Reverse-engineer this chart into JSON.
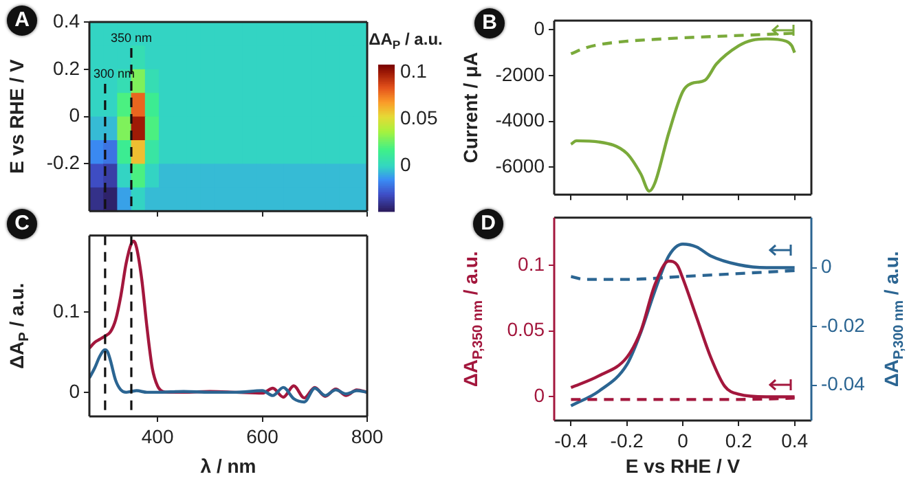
{
  "chart_data": [
    {
      "type": "heatmap",
      "annotations": [
        "A"
      ],
      "ylabel": "E vs RHE / V",
      "clabel": "ΔA$_{P}$ / a.u.",
      "tick_labels": "y",
      "x": [
        283.25,
        309.75,
        336.25,
        362.75,
        389.25,
        415.75,
        442.25,
        468.75,
        495.25,
        521.75,
        548.25,
        574.75,
        601.25,
        627.75,
        654.25,
        680.75,
        707.25,
        733.75,
        760.25,
        786.75
      ],
      "y": [
        0.35,
        0.25,
        0.15,
        0.05,
        -0.05,
        -0.15,
        -0.25,
        -0.35
      ],
      "xlim": [
        270,
        800
      ],
      "xticks": [
        400,
        600,
        800
      ],
      "ylim": [
        -0.4,
        0.4
      ],
      "yticks": [
        0.4,
        0.2,
        0,
        -0.2
      ],
      "clim": [
        -0.048,
        0.108
      ],
      "cticks": [
        0.1,
        0.05,
        0
      ],
      "cells": [
        [
          0,
          0,
          0,
          0,
          0,
          0,
          0,
          0,
          0,
          0,
          0,
          0,
          0,
          0,
          0,
          0,
          0,
          0,
          0,
          0
        ],
        [
          0,
          0,
          0,
          0.005,
          0,
          0,
          0,
          0,
          0,
          0,
          0,
          0,
          0,
          0,
          0,
          0,
          0,
          0,
          0,
          0
        ],
        [
          0,
          0,
          0.005,
          0.03,
          0.005,
          0,
          0,
          0,
          0,
          0,
          0,
          0,
          0,
          0,
          0,
          0,
          0,
          0,
          0,
          0
        ],
        [
          0,
          0,
          0.02,
          0.08,
          0.015,
          0,
          0,
          0,
          0,
          0,
          0,
          0,
          0,
          0,
          0,
          0,
          0,
          0,
          0,
          0
        ],
        [
          -0.005,
          -0.005,
          0.03,
          0.1,
          0.02,
          0,
          0,
          0,
          0,
          0,
          0,
          0,
          0,
          0,
          0,
          0,
          0,
          0,
          0,
          0
        ],
        [
          -0.015,
          -0.02,
          0.015,
          0.06,
          0.01,
          0,
          0,
          0,
          0,
          0,
          0,
          0,
          0,
          0,
          0,
          0,
          0,
          0,
          0,
          0
        ],
        [
          -0.03,
          -0.035,
          0,
          0.02,
          0,
          -0.005,
          -0.005,
          -0.005,
          -0.005,
          -0.005,
          -0.005,
          -0.005,
          -0.005,
          -0.005,
          -0.005,
          -0.005,
          -0.005,
          -0.005,
          -0.005,
          -0.005
        ],
        [
          -0.04,
          -0.045,
          -0.01,
          0,
          -0.005,
          -0.005,
          -0.005,
          -0.005,
          -0.005,
          -0.005,
          -0.005,
          -0.005,
          -0.005,
          -0.005,
          -0.005,
          -0.005,
          -0.005,
          -0.005,
          -0.005,
          -0.005
        ]
      ],
      "ref_lines": [
        {
          "axis": "x",
          "value": 300,
          "label": "300 nm",
          "line_style": "dashed"
        },
        {
          "axis": "x",
          "value": 350,
          "label": "350 nm",
          "line_style": "dashed"
        }
      ]
    },
    {
      "type": "line",
      "annotations": [
        "B"
      ],
      "ylabel": "Current / μA",
      "tick_labels": "y",
      "xlim": [
        -0.46,
        0.46
      ],
      "xticks": [
        -0.4,
        -0.2,
        0,
        0.2,
        0.4
      ],
      "ylim": [
        -7200,
        400
      ],
      "yticks": [
        0,
        -2000,
        -4000,
        -6000
      ],
      "series": [
        {
          "color": "#7aaa3a",
          "line_style": "solid",
          "x": [
            -0.4,
            -0.38,
            -0.3,
            -0.2,
            -0.15,
            -0.12,
            -0.1,
            -0.05,
            0,
            0.03,
            0.08,
            0.12,
            0.2,
            0.25,
            0.3,
            0.37,
            0.39,
            0.4
          ],
          "values": [
            -5000,
            -4850,
            -4900,
            -5400,
            -6300,
            -7050,
            -6700,
            -4500,
            -2700,
            -2350,
            -2200,
            -1500,
            -700,
            -450,
            -400,
            -500,
            -700,
            -1000
          ]
        },
        {
          "color": "#7aaa3a",
          "line_style": "dashed",
          "x": [
            -0.4,
            -0.35,
            -0.3,
            -0.2,
            -0.1,
            0,
            0.1,
            0.2,
            0.3,
            0.4
          ],
          "values": [
            -1050,
            -800,
            -650,
            -500,
            -420,
            -350,
            -300,
            -250,
            -200,
            -150
          ]
        }
      ]
    },
    {
      "type": "line",
      "annotations": [
        "C"
      ],
      "xlabel": "λ / nm",
      "ylabel": "ΔA$_{P}$ / a.u.",
      "xlim": [
        270,
        800
      ],
      "xticks": [
        400,
        600,
        800
      ],
      "ylim": [
        -0.03,
        0.195
      ],
      "yticks": [
        0,
        0.1
      ],
      "ref_lines": [
        {
          "axis": "x",
          "value": 300,
          "line_style": "dashed"
        },
        {
          "axis": "x",
          "value": 350,
          "line_style": "dashed"
        }
      ],
      "series": [
        {
          "color": "#2b6592",
          "x": [
            270,
            280,
            290,
            300,
            305,
            310,
            320,
            330,
            340,
            350,
            360,
            380,
            400,
            450,
            500,
            550,
            600,
            620,
            640,
            660,
            680,
            700,
            720,
            740,
            760,
            780,
            800
          ],
          "values": [
            0.018,
            0.03,
            0.045,
            0.053,
            0.05,
            0.04,
            0.015,
            0.003,
            0,
            0.001,
            0.002,
            0,
            0,
            0.001,
            0,
            0,
            0.002,
            -0.004,
            0.006,
            -0.008,
            -0.012,
            0.005,
            -0.004,
            0.003,
            -0.002,
            0.002,
            0
          ]
        },
        {
          "color": "#a3173d",
          "x": [
            270,
            280,
            290,
            300,
            310,
            320,
            330,
            340,
            350,
            355,
            360,
            370,
            380,
            390,
            400,
            410,
            420,
            450,
            500,
            550,
            600,
            620,
            640,
            660,
            680,
            700,
            720,
            740,
            760,
            780,
            800
          ],
          "values": [
            0.055,
            0.062,
            0.066,
            0.07,
            0.075,
            0.09,
            0.12,
            0.16,
            0.185,
            0.188,
            0.18,
            0.14,
            0.08,
            0.03,
            0.008,
            0.001,
            0,
            0,
            0.001,
            0,
            -0.001,
            0.005,
            -0.006,
            0.008,
            -0.007,
            0.006,
            -0.005,
            0.004,
            -0.004,
            0.003,
            0
          ]
        }
      ]
    },
    {
      "type": "line",
      "annotations": [
        "D"
      ],
      "xlabel": "E vs RHE / V",
      "ylabel": "ΔA$_{P,350 nm}$ / a.u.",
      "y2label": "ΔA$_{P,300 nm}$ / a.u.",
      "xlim": [
        -0.46,
        0.46
      ],
      "xticks": [
        -0.4,
        -0.2,
        0,
        0.2,
        0.4
      ],
      "ylim": [
        -0.018,
        0.136
      ],
      "yticks": [
        0,
        0.05,
        0.1
      ],
      "y2lim": [
        -0.052,
        0.017
      ],
      "y2ticks": [
        0,
        -0.02,
        -0.04
      ],
      "series": [
        {
          "color": "#a3173d",
          "line_style": "solid",
          "x": [
            -0.4,
            -0.3,
            -0.2,
            -0.15,
            -0.1,
            -0.05,
            -0.02,
            0,
            0.05,
            0.1,
            0.15,
            0.2,
            0.3,
            0.4
          ],
          "values": [
            0.007,
            0.016,
            0.03,
            0.05,
            0.085,
            0.103,
            0.1,
            0.09,
            0.06,
            0.03,
            0.008,
            0.002,
            0,
            0
          ]
        },
        {
          "color": "#a3173d",
          "line_style": "dashed",
          "x": [
            -0.4,
            -0.2,
            0,
            0.2,
            0.4
          ],
          "values": [
            -0.002,
            -0.002,
            -0.002,
            -0.002,
            -0.001
          ]
        },
        {
          "color": "#2b6592",
          "line_style": "solid",
          "axis": "y2",
          "x": [
            -0.4,
            -0.3,
            -0.2,
            -0.15,
            -0.1,
            -0.05,
            0,
            0.05,
            0.1,
            0.2,
            0.3,
            0.4
          ],
          "values": [
            -0.047,
            -0.042,
            -0.033,
            -0.022,
            -0.008,
            0.004,
            0.008,
            0.007,
            0.004,
            0.001,
            0,
            0
          ]
        },
        {
          "color": "#2b6592",
          "line_style": "dashed",
          "axis": "y2",
          "x": [
            -0.4,
            -0.35,
            -0.2,
            0,
            0.2,
            0.4
          ],
          "values": [
            -0.003,
            -0.004,
            -0.004,
            -0.003,
            -0.002,
            -0.001
          ]
        }
      ]
    }
  ]
}
